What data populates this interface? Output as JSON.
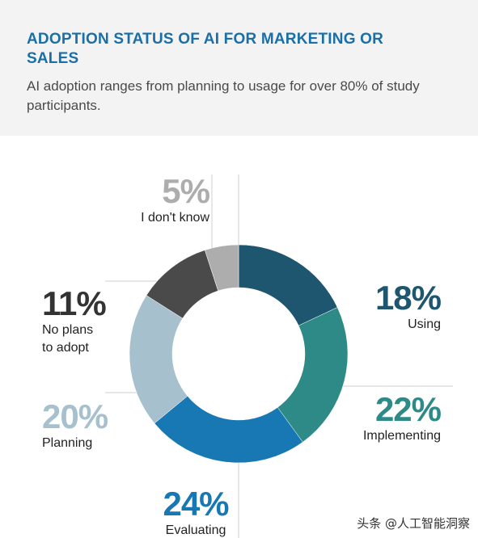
{
  "title": "ADOPTION STATUS OF AI FOR MARKETING OR SALES",
  "subtitle": "AI adoption ranges from planning to usage for over 80% of study participants.",
  "watermark": "头条 @人工智能洞察",
  "chart_data": {
    "type": "pie",
    "donut": true,
    "unit": "%",
    "slices": [
      {
        "label": "Using",
        "value": 18,
        "color": "#1e5670",
        "text_color": "#1e5670"
      },
      {
        "label": "Implementing",
        "value": 22,
        "color": "#2e8a86",
        "text_color": "#2e8a86"
      },
      {
        "label": "Evaluating",
        "value": 24,
        "color": "#1878b3",
        "text_color": "#1878b3"
      },
      {
        "label": "Planning",
        "value": 20,
        "color": "#a7c0cd",
        "text_color": "#a7c0cd"
      },
      {
        "label": "No plans to adopt",
        "value": 11,
        "color": "#4a4a4a",
        "text_color": "#333333"
      },
      {
        "label": "I don't know",
        "value": 5,
        "color": "#adadad",
        "text_color": "#adadad"
      }
    ]
  }
}
